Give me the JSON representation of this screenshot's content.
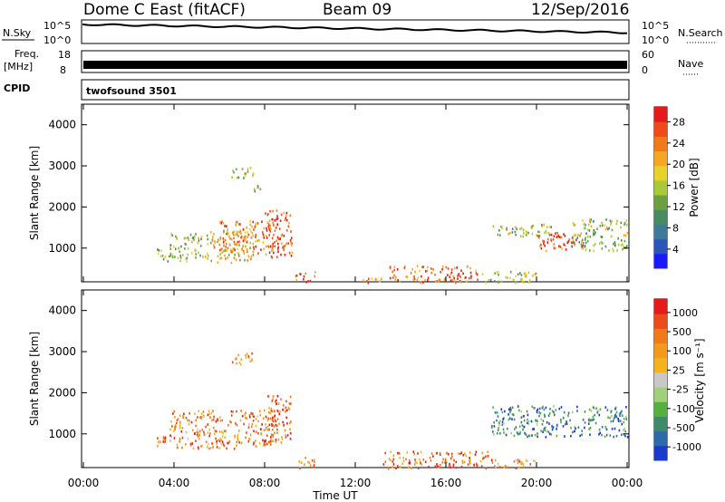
{
  "header": {
    "station": "Dome C East (fitACF)",
    "beam": "Beam 09",
    "date": "12/Sep/2016"
  },
  "strips": {
    "nsky_label": "N.Sky",
    "nsearch_label": "N.Search",
    "nsky_ticks": [
      "10^5",
      "10^0"
    ],
    "nsearch_ticks": [
      "10^5",
      "10^0"
    ],
    "freq_label": "Freq.",
    "freq_unit": "[MHz]",
    "freq_ticks": [
      "18",
      "8"
    ],
    "nave_label": "Nave",
    "nave_ticks": [
      "60",
      "0"
    ],
    "cpid_label": "CPID",
    "cpid_value": "twofsound 3501"
  },
  "chart_data": [
    {
      "type": "heatmap",
      "name": "power",
      "ylabel": "Slant Range [km]",
      "xlabel": "Time UT",
      "x_ticks": [
        "00:00",
        "04:00",
        "08:00",
        "12:00",
        "16:00",
        "20:00",
        "00:00"
      ],
      "x_hours": [
        0,
        4,
        8,
        12,
        16,
        20,
        24
      ],
      "ylim": [
        180,
        4500
      ],
      "y_ticks": [
        1000,
        2000,
        3000,
        4000
      ],
      "colorbar": {
        "label": "Power [dB]",
        "ticks": [
          "4",
          "8",
          "12",
          "16",
          "20",
          "24",
          "28"
        ],
        "colors": [
          "#1a1aff",
          "#2b55b8",
          "#3d7a9a",
          "#4a8a60",
          "#6aa040",
          "#a9c83a",
          "#e6d22b",
          "#f5a623",
          "#f07a1a",
          "#ee4a1a",
          "#e51b1b"
        ]
      },
      "regions": [
        {
          "x0": 3.2,
          "x1": 3.8,
          "y0": 700,
          "y1": 1000,
          "level": 0.45
        },
        {
          "x0": 3.8,
          "x1": 5.5,
          "y0": 700,
          "y1": 1400,
          "level": 0.5
        },
        {
          "x0": 5.5,
          "x1": 7.5,
          "y0": 650,
          "y1": 1500,
          "level": 0.62
        },
        {
          "x0": 6.0,
          "x1": 8.5,
          "y0": 900,
          "y1": 1700,
          "level": 0.75
        },
        {
          "x0": 8.0,
          "x1": 9.2,
          "y0": 800,
          "y1": 1950,
          "level": 0.9
        },
        {
          "x0": 6.5,
          "x1": 7.5,
          "y0": 2700,
          "y1": 3000,
          "level": 0.5
        },
        {
          "x0": 7.5,
          "x1": 8.0,
          "y0": 2400,
          "y1": 2600,
          "level": 0.45
        },
        {
          "x0": 9.3,
          "x1": 10.2,
          "y0": 180,
          "y1": 450,
          "level": 0.9
        },
        {
          "x0": 12.3,
          "x1": 13.5,
          "y0": 180,
          "y1": 320,
          "level": 0.7
        },
        {
          "x0": 13.5,
          "x1": 17.5,
          "y0": 180,
          "y1": 600,
          "level": 0.85
        },
        {
          "x0": 17.5,
          "x1": 20.0,
          "y0": 180,
          "y1": 450,
          "level": 0.55
        },
        {
          "x0": 18.0,
          "x1": 21.0,
          "y0": 1300,
          "y1": 1600,
          "level": 0.5
        },
        {
          "x0": 20.0,
          "x1": 22.0,
          "y0": 950,
          "y1": 1400,
          "level": 0.85
        },
        {
          "x0": 21.5,
          "x1": 24.0,
          "y0": 950,
          "y1": 1750,
          "level": 0.45
        }
      ]
    },
    {
      "type": "heatmap",
      "name": "velocity",
      "ylabel": "Slant Range [km]",
      "xlabel": "Time UT",
      "x_ticks": [
        "00:00",
        "04:00",
        "08:00",
        "12:00",
        "16:00",
        "20:00",
        "00:00"
      ],
      "x_hours": [
        0,
        4,
        8,
        12,
        16,
        20,
        24
      ],
      "ylim": [
        180,
        4500
      ],
      "y_ticks": [
        1000,
        2000,
        3000,
        4000
      ],
      "colorbar": {
        "label": "Velocity [m s⁻¹]",
        "ticks": [
          "1000",
          "500",
          "100",
          "25",
          "-25",
          "-100",
          "-500",
          "-1000"
        ],
        "colors": [
          "#1a3acc",
          "#2d6aa8",
          "#3e8a6a",
          "#56b040",
          "#9fd07a",
          "#c8c8c8",
          "#f5b21f",
          "#f39a1a",
          "#ef7a1a",
          "#eb4a1a",
          "#e51b1b"
        ]
      },
      "regions": [
        {
          "x0": 3.2,
          "x1": 3.8,
          "y0": 700,
          "y1": 1000,
          "level": 0.75
        },
        {
          "x0": 3.8,
          "x1": 8.5,
          "y0": 650,
          "y1": 1600,
          "level": 0.75
        },
        {
          "x0": 8.0,
          "x1": 9.2,
          "y0": 800,
          "y1": 1950,
          "level": 0.82
        },
        {
          "x0": 6.5,
          "x1": 7.5,
          "y0": 2700,
          "y1": 3000,
          "level": 0.7
        },
        {
          "x0": 9.3,
          "x1": 10.2,
          "y0": 180,
          "y1": 450,
          "level": 0.7
        },
        {
          "x0": 13.0,
          "x1": 18.0,
          "y0": 180,
          "y1": 600,
          "level": 0.78
        },
        {
          "x0": 18.0,
          "x1": 20.0,
          "y0": 180,
          "y1": 450,
          "level": 0.72
        },
        {
          "x0": 18.0,
          "x1": 24.0,
          "y0": 950,
          "y1": 1700,
          "level": 0.2
        }
      ]
    }
  ]
}
